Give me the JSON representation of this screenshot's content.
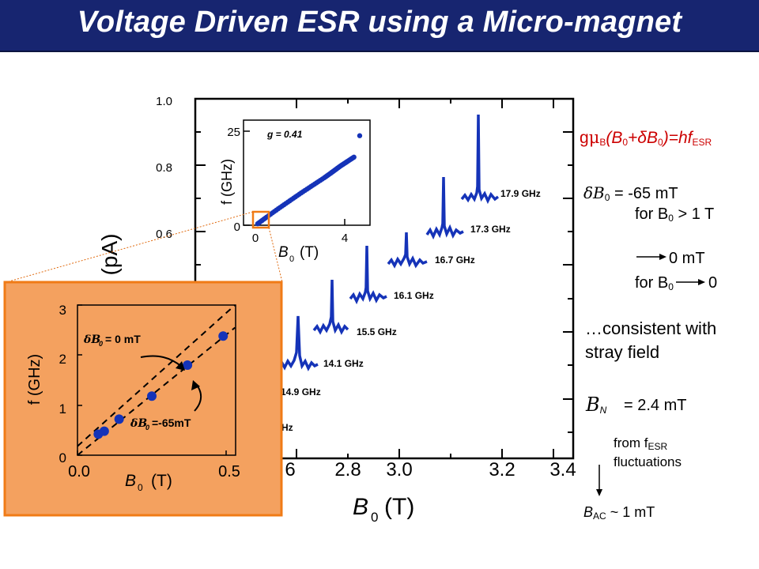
{
  "slide": {
    "title": "Voltage Driven ESR using a Micro-magnet"
  },
  "colors": {
    "title_bg": "#172570",
    "trace": "#1533b8",
    "inset_bg": "#f4a15f",
    "frame": "#f07b16"
  },
  "main_plot": {
    "ylabel": "(pA)",
    "xlabel": {
      "sym": "B",
      "sub": "0",
      "unit": "(T)"
    },
    "y_ticks": [
      "1.0",
      "0.8",
      "0.6"
    ],
    "x_ticks": [
      "6",
      "2.8",
      "3.0",
      "3.2",
      "3.4"
    ],
    "traces": [
      "17.9 GHz",
      "17.3 GHz",
      "16.7 GHz",
      "16.1 GHz",
      "15.5 GHz",
      "14.1 GHz",
      "14.9 GHz",
      "Hz"
    ]
  },
  "chart_data": [
    {
      "type": "line",
      "title": "",
      "xlabel": "B0 (T)",
      "ylabel": "(pA)",
      "y_ticks_visible": [
        "1.0",
        "0.8",
        "0.6"
      ],
      "x_ticks_visible": [
        "6",
        "2.8",
        "3.0",
        "3.2",
        "3.4"
      ],
      "series": [
        {
          "name": "17.9 GHz",
          "peak_B0": 3.28
        },
        {
          "name": "17.3 GHz",
          "peak_B0": 3.18
        },
        {
          "name": "16.7 GHz",
          "peak_B0": 3.07
        },
        {
          "name": "16.1 GHz",
          "peak_B0": 2.96
        },
        {
          "name": "15.5 GHz",
          "peak_B0": 2.86
        },
        {
          "name": "14.1 GHz",
          "peak_B0": 2.68
        },
        {
          "name": "14.9 GHz",
          "peak_B0": 2.62
        }
      ]
    },
    {
      "type": "scatter",
      "title": "",
      "annotation": "g = 0.41",
      "xlabel": "B0 (T)",
      "ylabel": "f (GHz)",
      "xlim": [
        0,
        5
      ],
      "ylim": [
        0,
        26
      ],
      "x_ticks": [
        "0",
        "4"
      ],
      "y_ticks": [
        "0",
        "25"
      ],
      "x": [
        0.1,
        0.5,
        1.0,
        1.5,
        2.0,
        2.5,
        3.0,
        3.3,
        3.5,
        3.7,
        3.9,
        4.1,
        4.3,
        4.55
      ],
      "y": [
        0.4,
        2.2,
        4.4,
        6.5,
        8.6,
        10.6,
        12.6,
        13.9,
        14.8,
        15.7,
        16.5,
        17.3,
        18.1,
        23.8
      ]
    },
    {
      "type": "scatter",
      "title": "",
      "xlabel": "B0 (T)",
      "ylabel": "f (GHz)",
      "xlim": [
        0,
        0.5
      ],
      "ylim": [
        0,
        3
      ],
      "x_ticks": [
        "0.0",
        "0.5"
      ],
      "y_ticks": [
        "0",
        "1",
        "2",
        "3"
      ],
      "x": [
        0.07,
        0.09,
        0.14,
        0.25,
        0.37,
        0.49
      ],
      "y": [
        0.42,
        0.48,
        0.72,
        1.18,
        1.8,
        2.38
      ],
      "fit_lines": [
        {
          "label": "δB0= 0 mT",
          "x": [
            0.0,
            0.53
          ],
          "y": [
            0.18,
            3.1
          ]
        },
        {
          "label": "δB0=-65mT",
          "x": [
            0.0,
            0.53
          ],
          "y": [
            0.0,
            2.55
          ]
        }
      ]
    }
  ],
  "zoom_inset": {
    "ylabel": "f (GHz)",
    "xlabel": {
      "sym": "B",
      "sub": "0",
      "unit": "(T)"
    },
    "x_ticks": [
      "0.0",
      "0.5"
    ],
    "y_ticks": [
      "0",
      "1",
      "2",
      "3"
    ],
    "label_top": {
      "sym": "δB",
      "sub": "0",
      "text": "= 0 mT"
    },
    "label_bottom": {
      "sym": "δB",
      "sub": "0",
      "text": "=-65mT"
    }
  },
  "small_inset": {
    "ylabel": "f (GHz)",
    "xlabel": {
      "sym": "B",
      "sub": "0",
      "unit": "(T)"
    },
    "annotation": "g = 0.41",
    "x_ticks": [
      "0",
      "4"
    ],
    "y_ticks": [
      "0",
      "25"
    ]
  },
  "right_panel": {
    "equation": {
      "g": "g",
      "mu": "μ",
      "mu_sub": "B",
      "open": "(B",
      "open_sub": "0",
      "plus": "+δB",
      "plus_sub": "0",
      "close": ")=hf",
      "close_sub": "ESR"
    },
    "shift1": {
      "sym": "δB",
      "sub": "0",
      "text": " = -65 mT"
    },
    "cond1": {
      "text": "for B",
      "sub": "0",
      "rest": " > 1 T"
    },
    "shift2": "0 mT",
    "cond2": {
      "text": "for B",
      "sub": "0",
      "rest": "0"
    },
    "consistent": [
      "…consistent with",
      "stray field"
    ],
    "bn": {
      "sym": "B",
      "sub": "N",
      "text": "= 2.4 mT"
    },
    "from": {
      "text": "from f",
      "sub": "ESR"
    },
    "fluct": "fluctuations",
    "bac": {
      "sym": "B",
      "sub": "AC",
      "text": " ~ 1 mT"
    }
  }
}
